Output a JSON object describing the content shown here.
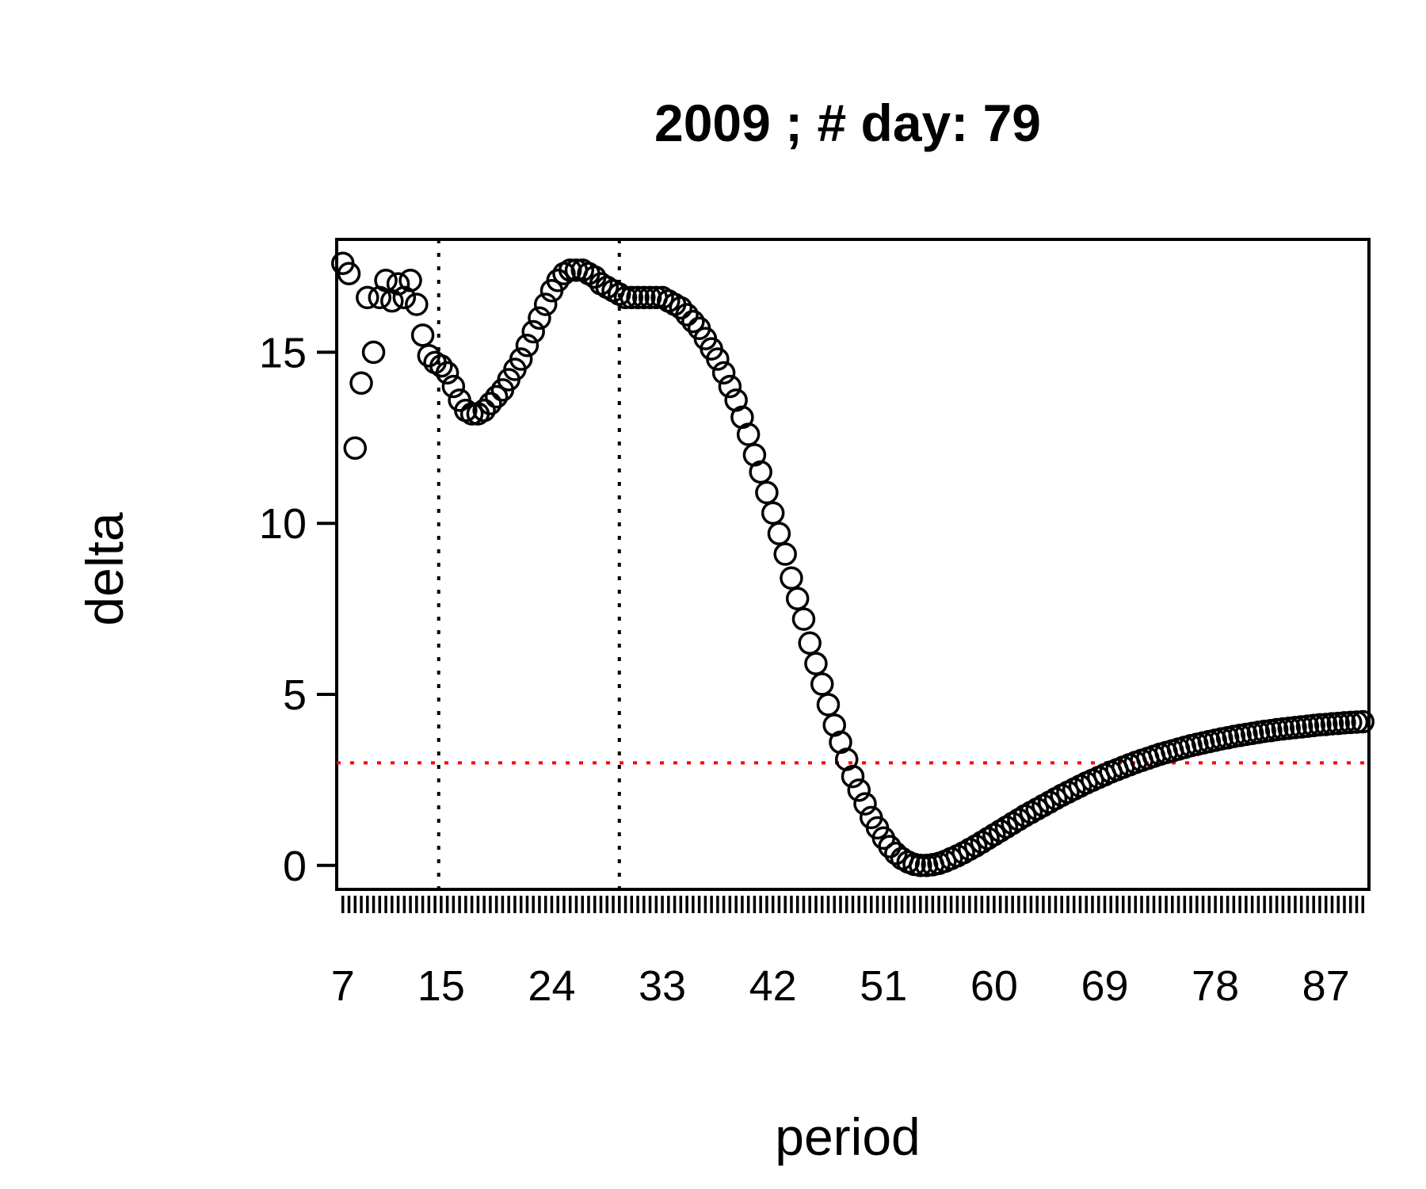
{
  "chart_data": {
    "type": "scatter",
    "title": "2009 ; # day:  79",
    "xlabel": "period",
    "ylabel": "delta",
    "xlim": [
      6.5,
      90.5
    ],
    "ylim": [
      -0.7,
      18.3
    ],
    "x_tick_labels": [
      "7",
      "15",
      "24",
      "33",
      "42",
      "51",
      "60",
      "69",
      "78",
      "87"
    ],
    "x_tick_positions": [
      7,
      15,
      24,
      33,
      42,
      51,
      60,
      69,
      78,
      87
    ],
    "minor_ticks": {
      "from": 7,
      "to": 90,
      "step": 0.5
    },
    "y_ticks": [
      0,
      5,
      10,
      15
    ],
    "grid": false,
    "reference_lines": [
      {
        "orientation": "vertical",
        "value": 14.8,
        "color": "#000000",
        "style": "dotted"
      },
      {
        "orientation": "vertical",
        "value": 29.5,
        "color": "#000000",
        "style": "dotted"
      },
      {
        "orientation": "horizontal",
        "value": 3.0,
        "color": "#ff0000",
        "style": "dotted"
      }
    ],
    "series": [
      {
        "marker": "open-circle",
        "color": "#000000",
        "points": [
          [
            7.0,
            17.6
          ],
          [
            7.5,
            17.3
          ],
          [
            8.0,
            12.2
          ],
          [
            8.5,
            14.1
          ],
          [
            9.0,
            16.6
          ],
          [
            9.5,
            15.0
          ],
          [
            10.0,
            16.6
          ],
          [
            10.5,
            17.1
          ],
          [
            11.0,
            16.5
          ],
          [
            11.5,
            17.0
          ],
          [
            12.0,
            16.6
          ],
          [
            12.5,
            17.1
          ],
          [
            13.0,
            16.4
          ],
          [
            13.5,
            15.5
          ],
          [
            14.0,
            14.9
          ],
          [
            14.5,
            14.7
          ],
          [
            15.0,
            14.6
          ],
          [
            15.5,
            14.4
          ],
          [
            16.0,
            14.0
          ],
          [
            16.5,
            13.6
          ],
          [
            17.0,
            13.3
          ],
          [
            17.5,
            13.2
          ],
          [
            18.0,
            13.2
          ],
          [
            18.5,
            13.3
          ],
          [
            19.0,
            13.5
          ],
          [
            19.5,
            13.7
          ],
          [
            20.0,
            13.9
          ],
          [
            20.5,
            14.2
          ],
          [
            21.0,
            14.5
          ],
          [
            21.5,
            14.8
          ],
          [
            22.0,
            15.2
          ],
          [
            22.5,
            15.6
          ],
          [
            23.0,
            16.0
          ],
          [
            23.5,
            16.4
          ],
          [
            24.0,
            16.8
          ],
          [
            24.5,
            17.1
          ],
          [
            25.0,
            17.3
          ],
          [
            25.5,
            17.4
          ],
          [
            26.0,
            17.4
          ],
          [
            26.5,
            17.4
          ],
          [
            27.0,
            17.3
          ],
          [
            27.5,
            17.2
          ],
          [
            28.0,
            17.0
          ],
          [
            28.5,
            16.9
          ],
          [
            29.0,
            16.8
          ],
          [
            29.5,
            16.7
          ],
          [
            30.0,
            16.6
          ],
          [
            30.5,
            16.6
          ],
          [
            31.0,
            16.6
          ],
          [
            31.5,
            16.6
          ],
          [
            32.0,
            16.6
          ],
          [
            32.5,
            16.6
          ],
          [
            33.0,
            16.6
          ],
          [
            33.5,
            16.5
          ],
          [
            34.0,
            16.4
          ],
          [
            34.5,
            16.3
          ],
          [
            35.0,
            16.1
          ],
          [
            35.5,
            15.9
          ],
          [
            36.0,
            15.7
          ],
          [
            36.5,
            15.4
          ],
          [
            37.0,
            15.1
          ],
          [
            37.5,
            14.8
          ],
          [
            38.0,
            14.4
          ],
          [
            38.5,
            14.0
          ],
          [
            39.0,
            13.6
          ],
          [
            39.5,
            13.1
          ],
          [
            40.0,
            12.6
          ],
          [
            40.5,
            12.0
          ],
          [
            41.0,
            11.5
          ],
          [
            41.5,
            10.9
          ],
          [
            42.0,
            10.3
          ],
          [
            42.5,
            9.7
          ],
          [
            43.0,
            9.1
          ],
          [
            43.5,
            8.4
          ],
          [
            44.0,
            7.8
          ],
          [
            44.5,
            7.2
          ],
          [
            45.0,
            6.5
          ],
          [
            45.5,
            5.9
          ],
          [
            46.0,
            5.3
          ],
          [
            46.5,
            4.7
          ],
          [
            47.0,
            4.1
          ],
          [
            47.5,
            3.6
          ],
          [
            48.0,
            3.1
          ],
          [
            48.5,
            2.6
          ],
          [
            49.0,
            2.2
          ],
          [
            49.5,
            1.8
          ],
          [
            50.0,
            1.4
          ],
          [
            50.5,
            1.1
          ],
          [
            51.0,
            0.8
          ],
          [
            51.5,
            0.55
          ],
          [
            52.0,
            0.35
          ],
          [
            52.5,
            0.2
          ],
          [
            53.0,
            0.1
          ],
          [
            53.5,
            0.03
          ],
          [
            54.0,
            0.0
          ],
          [
            54.5,
            0.0
          ],
          [
            55.0,
            0.02
          ],
          [
            55.5,
            0.06
          ],
          [
            56.0,
            0.12
          ],
          [
            56.5,
            0.2
          ],
          [
            57.0,
            0.28
          ],
          [
            57.5,
            0.37
          ],
          [
            58.0,
            0.47
          ],
          [
            58.5,
            0.57
          ],
          [
            59.0,
            0.68
          ],
          [
            59.5,
            0.79
          ],
          [
            60.0,
            0.9
          ],
          [
            60.5,
            1.01
          ],
          [
            61.0,
            1.12
          ],
          [
            61.5,
            1.23
          ],
          [
            62.0,
            1.34
          ],
          [
            62.5,
            1.45
          ],
          [
            63.0,
            1.55
          ],
          [
            63.5,
            1.65
          ],
          [
            64.0,
            1.75
          ],
          [
            64.5,
            1.85
          ],
          [
            65.0,
            1.95
          ],
          [
            65.5,
            2.05
          ],
          [
            66.0,
            2.14
          ],
          [
            66.5,
            2.23
          ],
          [
            67.0,
            2.32
          ],
          [
            67.5,
            2.41
          ],
          [
            68.0,
            2.49
          ],
          [
            68.5,
            2.57
          ],
          [
            69.0,
            2.65
          ],
          [
            69.5,
            2.73
          ],
          [
            70.0,
            2.8
          ],
          [
            70.5,
            2.87
          ],
          [
            71.0,
            2.94
          ],
          [
            71.5,
            3.01
          ],
          [
            72.0,
            3.07
          ],
          [
            72.5,
            3.13
          ],
          [
            73.0,
            3.19
          ],
          [
            73.5,
            3.25
          ],
          [
            74.0,
            3.3
          ],
          [
            74.5,
            3.35
          ],
          [
            75.0,
            3.4
          ],
          [
            75.5,
            3.45
          ],
          [
            76.0,
            3.5
          ],
          [
            76.5,
            3.54
          ],
          [
            77.0,
            3.58
          ],
          [
            77.5,
            3.62
          ],
          [
            78.0,
            3.66
          ],
          [
            78.5,
            3.7
          ],
          [
            79.0,
            3.73
          ],
          [
            79.5,
            3.77
          ],
          [
            80.0,
            3.8
          ],
          [
            80.5,
            3.83
          ],
          [
            81.0,
            3.86
          ],
          [
            81.5,
            3.89
          ],
          [
            82.0,
            3.92
          ],
          [
            82.5,
            3.94
          ],
          [
            83.0,
            3.97
          ],
          [
            83.5,
            3.99
          ],
          [
            84.0,
            4.01
          ],
          [
            84.5,
            4.03
          ],
          [
            85.0,
            4.05
          ],
          [
            85.5,
            4.07
          ],
          [
            86.0,
            4.09
          ],
          [
            86.5,
            4.11
          ],
          [
            87.0,
            4.12
          ],
          [
            87.5,
            4.14
          ],
          [
            88.0,
            4.15
          ],
          [
            88.5,
            4.17
          ],
          [
            89.0,
            4.18
          ],
          [
            89.5,
            4.19
          ],
          [
            90.0,
            4.2
          ]
        ]
      }
    ]
  }
}
